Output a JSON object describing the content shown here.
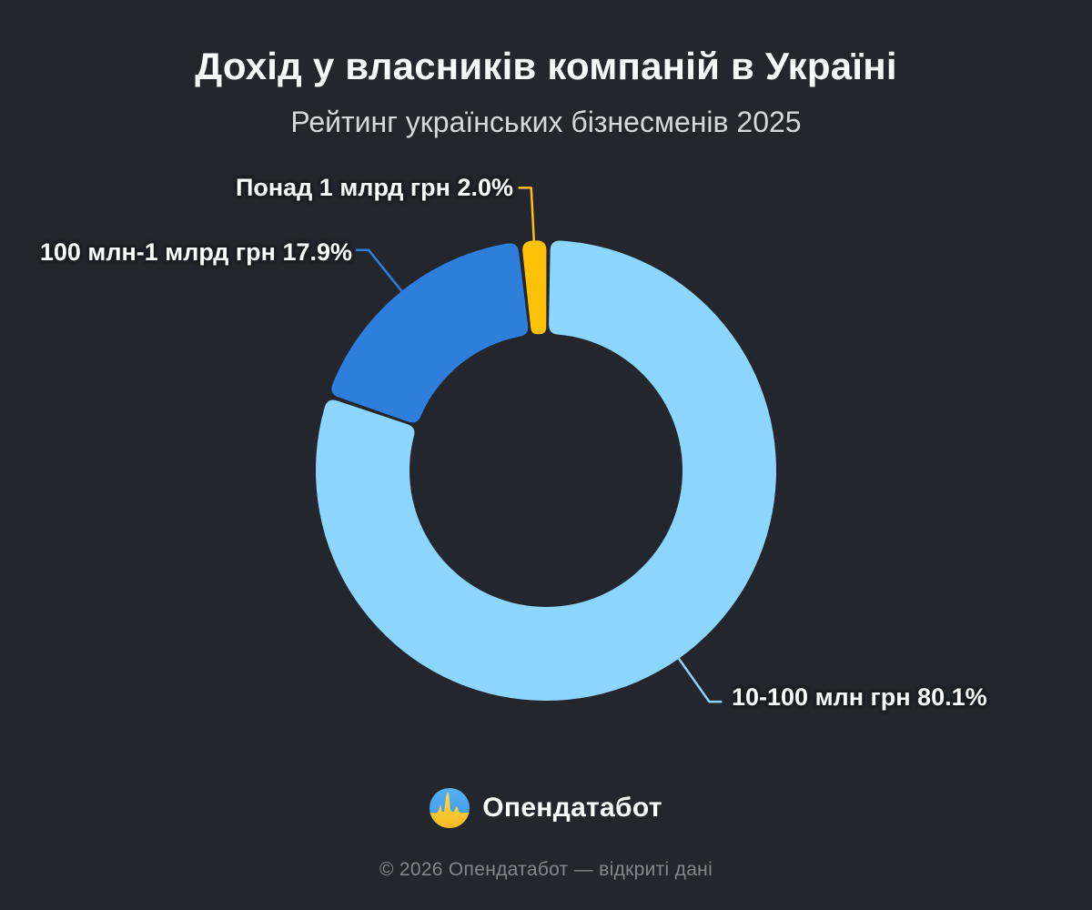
{
  "header": {
    "title": "Дохід у власників компаній в Україні",
    "subtitle": "Рейтинг українських бізнесменів 2025"
  },
  "chart_data": {
    "type": "pie",
    "variant": "donut",
    "title": "Дохід у власників компаній в Україні",
    "subtitle": "Рейтинг українських бізнесменів 2025",
    "unit": "percent",
    "legend_position": "callout-labels",
    "background_color": "#23262c",
    "slices": [
      {
        "label": "10-100 млн грн",
        "value": 80.1,
        "display": "10-100 млн грн 80.1%",
        "color": "#8cd5fc"
      },
      {
        "label": "100 млн-1 млрд грн",
        "value": 17.9,
        "display": "100 млн-1 млрд грн 17.9%",
        "color": "#2e7edb"
      },
      {
        "label": "Понад 1 млрд грн",
        "value": 2.0,
        "display": "Понад 1 млрд грн 2.0%",
        "color": "#ffc107"
      }
    ]
  },
  "brand": {
    "name": "Опендатабот",
    "logo_icon": "opendatabot-pulse-icon",
    "logo_colors": {
      "blue_top": "#55b2f2",
      "blue_bottom": "#3c92e8",
      "yellow_top": "#ffd952",
      "yellow_bottom": "#f3b91d"
    }
  },
  "footer": {
    "copyright": "© 2026 Опендатабот — відкриті дані"
  }
}
